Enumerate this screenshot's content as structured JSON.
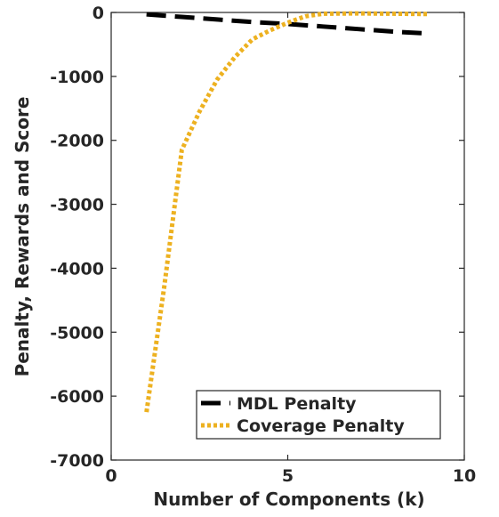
{
  "chart_data": {
    "type": "line",
    "title": "",
    "xlabel": "Number of Components (k)",
    "ylabel": "Penalty, Rewards and Score",
    "xlim": [
      0,
      10
    ],
    "ylim": [
      -7000,
      0
    ],
    "xticks": [
      0,
      5,
      10
    ],
    "yticks": [
      0,
      -1000,
      -2000,
      -3000,
      -4000,
      -5000,
      -6000,
      -7000
    ],
    "grid": false,
    "legend_position": "bottom-right",
    "series": [
      {
        "name": "MDL Penalty",
        "color": "#000000",
        "style": "dashed",
        "x": [
          1,
          2,
          3,
          4,
          5,
          6,
          7,
          8,
          9
        ],
        "y": [
          -30,
          -70,
          -110,
          -150,
          -180,
          -220,
          -260,
          -300,
          -330
        ]
      },
      {
        "name": "Coverage Penalty",
        "color": "#EDB120",
        "style": "dotted",
        "x": [
          1,
          1.5,
          2,
          2.5,
          3,
          3.5,
          4,
          4.5,
          5,
          5.5,
          6,
          7,
          8,
          9
        ],
        "y": [
          -6250,
          -4300,
          -2150,
          -1550,
          -1050,
          -700,
          -420,
          -280,
          -160,
          -60,
          -20,
          -15,
          -20,
          -25
        ]
      }
    ]
  }
}
